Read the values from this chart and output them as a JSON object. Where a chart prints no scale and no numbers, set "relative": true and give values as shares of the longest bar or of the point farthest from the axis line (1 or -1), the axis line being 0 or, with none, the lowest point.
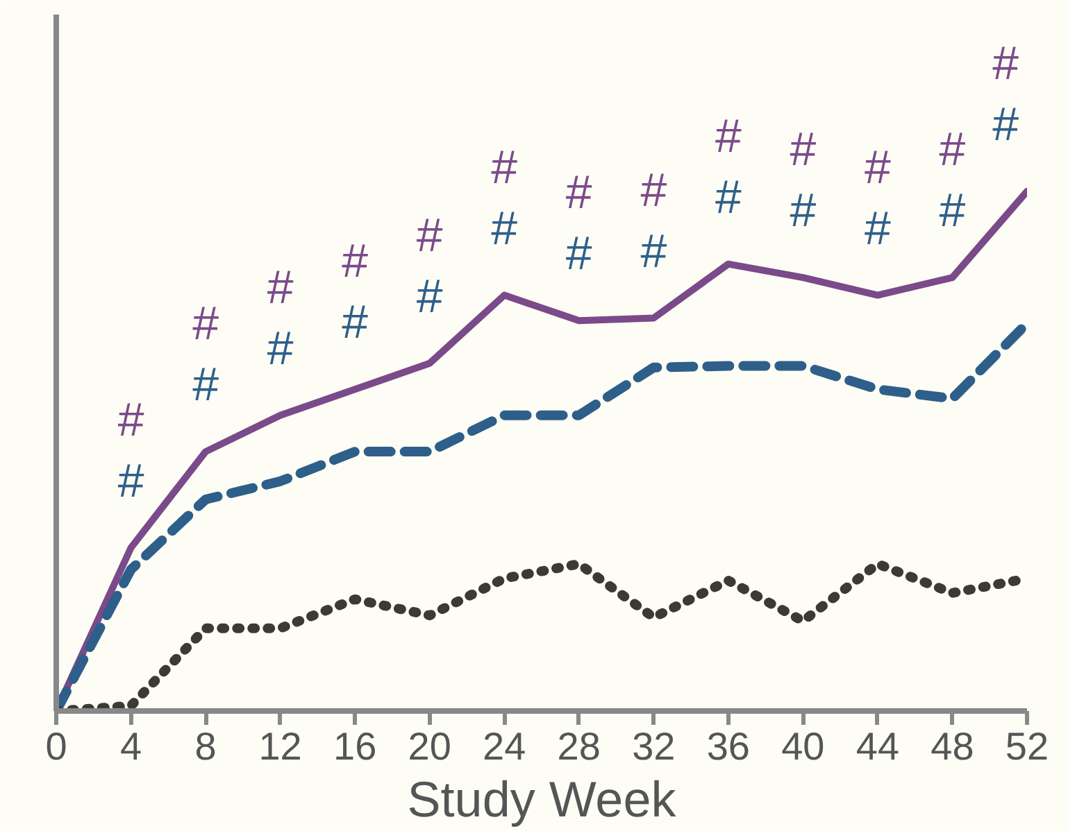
{
  "chart_data": {
    "type": "line",
    "relative": true,
    "xlabel": "Study Week",
    "x": [
      0,
      4,
      8,
      12,
      16,
      20,
      24,
      28,
      32,
      36,
      40,
      44,
      48,
      52
    ],
    "xlim": [
      0,
      52
    ],
    "xticks": [
      0,
      4,
      8,
      12,
      16,
      20,
      24,
      28,
      32,
      36,
      40,
      44,
      48,
      52
    ],
    "grid": false,
    "marker": "none",
    "series": [
      {
        "color": "#7a4a8a",
        "line_style": "solid",
        "values": [
          0,
          0.314,
          0.499,
          0.569,
          0.619,
          0.669,
          0.8,
          0.751,
          0.756,
          0.86,
          0.834,
          0.8,
          0.834,
          1.0
        ]
      },
      {
        "color": "#2e5f8a",
        "line_style": "dashed",
        "values": [
          0,
          0.272,
          0.407,
          0.442,
          0.499,
          0.499,
          0.569,
          0.569,
          0.661,
          0.664,
          0.664,
          0.619,
          0.601,
          0.746
        ]
      },
      {
        "color": "#3d3a35",
        "line_style": "dotted",
        "values": [
          0,
          0.01,
          0.159,
          0.159,
          0.215,
          0.184,
          0.255,
          0.283,
          0.18,
          0.251,
          0.173,
          0.283,
          0.227,
          0.255
        ]
      }
    ],
    "annotations": [
      "#",
      "#",
      "#",
      "#",
      "#",
      "#",
      "#",
      "#",
      "#",
      "#",
      "#",
      "#",
      "#",
      "#",
      "#",
      "#",
      "#",
      "#",
      "#",
      "#",
      "#",
      "#",
      "#",
      "#",
      "#",
      "#"
    ]
  }
}
